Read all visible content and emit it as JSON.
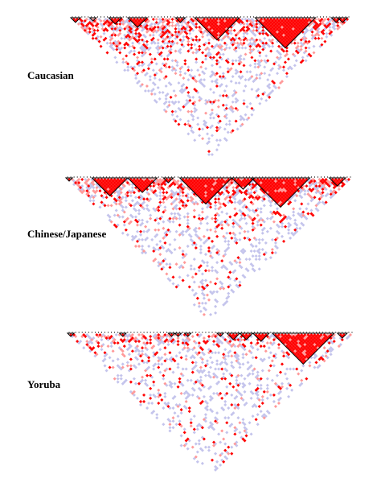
{
  "chart_data": [
    {
      "type": "heatmap",
      "title": "",
      "population": "Caucasian",
      "n_snps": 88,
      "colors": {
        "strong_ld": "#ff0000",
        "weak_ld": "#ff9999",
        "low_lod": "#c4c4ec",
        "none": "#ffffff",
        "block_outline": "#000000"
      },
      "block_ranges": [
        [
          1,
          3
        ],
        [
          7,
          8
        ],
        [
          13,
          16
        ],
        [
          19,
          24
        ],
        [
          34,
          36
        ],
        [
          40,
          53
        ],
        [
          59,
          77
        ],
        [
          83,
          85
        ],
        [
          85,
          87
        ]
      ],
      "texture": {
        "decay": 12,
        "density": 0.7
      }
    },
    {
      "type": "heatmap",
      "title": "",
      "population": "Chinese/Japanese",
      "n_snps": 88,
      "colors": {
        "strong_ld": "#ff0000",
        "weak_ld": "#ff9999",
        "low_lod": "#c4c4ec",
        "none": "#ffffff",
        "block_outline": "#000000"
      },
      "block_ranges": [
        [
          1,
          2
        ],
        [
          9,
          19
        ],
        [
          20,
          28
        ],
        [
          31,
          33
        ],
        [
          36,
          51
        ],
        [
          52,
          58
        ],
        [
          58,
          75
        ],
        [
          82,
          86
        ]
      ],
      "texture": {
        "decay": 11,
        "density": 0.65
      }
    },
    {
      "type": "heatmap",
      "title": "",
      "population": "Yoruba",
      "n_snps": 88,
      "colors": {
        "strong_ld": "#ff0000",
        "weak_ld": "#ff9999",
        "low_lod": "#c4c4ec",
        "none": "#ffffff",
        "block_outline": "#000000"
      },
      "block_ranges": [
        [
          1,
          2
        ],
        [
          17,
          18
        ],
        [
          32,
          33
        ],
        [
          34,
          35
        ],
        [
          37,
          38
        ],
        [
          47,
          48
        ],
        [
          50,
          53
        ],
        [
          54,
          57
        ],
        [
          58,
          62
        ],
        [
          64,
          82
        ],
        [
          84,
          86
        ]
      ],
      "texture": {
        "decay": 6,
        "density": 0.5
      }
    }
  ],
  "labels": {
    "caucasian": "Caucasian",
    "chinese_japanese": "Chinese/Japanese",
    "yoruba": "Yoruba"
  }
}
